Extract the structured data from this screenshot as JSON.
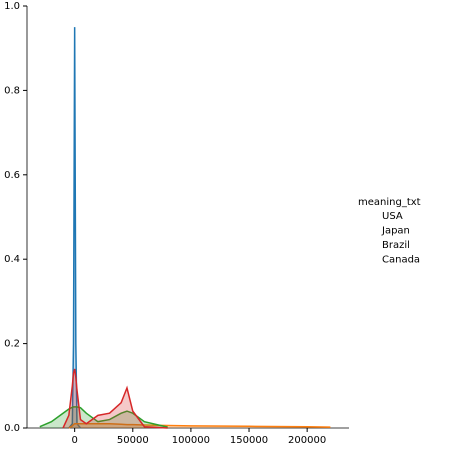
{
  "chart_data": {
    "type": "kde",
    "x": [
      -30000,
      -20000,
      -10000,
      -5000,
      -2000,
      -1000,
      0,
      1000,
      2000,
      5000,
      10000,
      20000,
      30000,
      40000,
      45000,
      50000,
      60000,
      80000,
      100000,
      150000,
      200000,
      220000
    ],
    "series": [
      {
        "name": "USA",
        "color": "#1f77b4",
        "values": [
          null,
          null,
          null,
          0,
          0.01,
          0.2,
          0.95,
          0.2,
          0.01,
          0,
          null,
          null,
          null,
          null,
          null,
          null,
          null,
          null,
          null,
          null,
          null,
          null
        ]
      },
      {
        "name": "Japan",
        "color": "#ff7f0e",
        "values": [
          null,
          null,
          null,
          0,
          0.005,
          0.008,
          0.01,
          0.01,
          0.01,
          0.01,
          0.01,
          0.01,
          0.01,
          0.009,
          0.008,
          0.008,
          0.007,
          0.006,
          0.005,
          0.004,
          0.003,
          0.002
        ]
      },
      {
        "name": "Brazil",
        "color": "#2ca02c",
        "values": [
          0.003,
          0.015,
          0.035,
          0.045,
          0.049,
          0.05,
          0.05,
          0.05,
          0.05,
          0.048,
          0.035,
          0.015,
          0.02,
          0.035,
          0.04,
          0.035,
          0.015,
          0.002,
          null,
          null,
          null,
          null
        ]
      },
      {
        "name": "Canada",
        "color": "#d62728",
        "values": [
          null,
          null,
          0,
          0.03,
          0.1,
          0.13,
          0.14,
          0.12,
          0.09,
          0.02,
          0.01,
          0.03,
          0.035,
          0.06,
          0.095,
          0.04,
          0.003,
          0,
          null,
          null,
          null,
          null
        ]
      }
    ],
    "legend_title": "meaning_txt",
    "xlim": [
      -41000,
      236000
    ],
    "xticks": [
      0,
      50000,
      100000,
      150000,
      200000
    ],
    "ylim": [
      0,
      1.0
    ],
    "yticks": [
      {
        "value": 0,
        "label": "0.0"
      },
      0.2,
      0.4,
      0.6,
      0.8,
      {
        "value": 1.0,
        "label": "1.0"
      }
    ],
    "grid": false
  }
}
